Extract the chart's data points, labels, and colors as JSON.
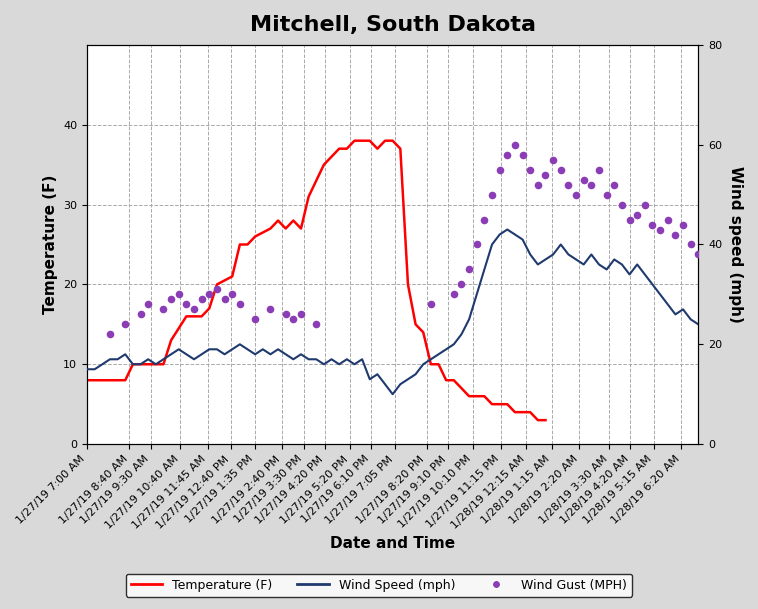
{
  "title": "Mitchell, South Dakota",
  "xlabel": "Date and Time",
  "ylabel_left": "Temperature (F)",
  "ylabel_right": "Wind speed (mph)",
  "background_color": "#d9d9d9",
  "plot_bg_color": "#ffffff",
  "title_fontsize": 16,
  "axis_label_fontsize": 11,
  "tick_fontsize": 8,
  "temp_color": "#ff0000",
  "wind_speed_color": "#1f3a6e",
  "wind_gust_color": "#8b3db5",
  "temp_ylim": [
    0,
    50
  ],
  "wind_ylim": [
    0,
    80
  ],
  "temp_yticks": [
    0,
    10,
    20,
    30,
    40
  ],
  "wind_yticks": [
    0,
    20,
    40,
    60,
    80
  ],
  "xtick_labels": [
    "1/27/19 7:00 AM",
    "1/27/19 8:40 AM",
    "1/27/19 9:30 AM",
    "1/27/19 10:40 AM",
    "1/27/19 11:45 AM",
    "1/27/19 12:40 PM",
    "1/27/19 1:35 PM",
    "1/27/19 2:40 PM",
    "1/27/19 3:30 PM",
    "1/27/19 4:20 PM",
    "1/27/19 5:20 PM",
    "1/27/19 6:10 PM",
    "1/27/19 7:05 PM",
    "1/27/19 8:20 PM",
    "1/27/19 9:10 PM",
    "1/27/19 10:10 PM",
    "1/27/19 11:15 PM",
    "1/28/19 12:15 AM",
    "1/28/19 1:15 AM",
    "1/28/19 2:20 AM",
    "1/28/19 3:30 AM",
    "1/28/19 4:20 AM",
    "1/28/19 5:15 AM",
    "1/28/19 6:20 AM"
  ],
  "temp_data": [
    [
      0,
      8
    ],
    [
      5,
      8
    ],
    [
      6,
      10
    ],
    [
      10,
      10
    ],
    [
      11,
      13
    ],
    [
      13,
      16
    ],
    [
      15,
      16
    ],
    [
      16,
      17
    ],
    [
      17,
      20
    ],
    [
      19,
      21
    ],
    [
      20,
      25
    ],
    [
      21,
      25
    ],
    [
      22,
      26
    ],
    [
      24,
      27
    ],
    [
      25,
      28
    ],
    [
      26,
      27
    ],
    [
      27,
      28
    ],
    [
      28,
      27
    ],
    [
      29,
      31
    ],
    [
      30,
      33
    ],
    [
      31,
      35
    ],
    [
      32,
      36
    ],
    [
      33,
      37
    ],
    [
      34,
      37
    ],
    [
      35,
      38
    ],
    [
      36,
      38
    ],
    [
      37,
      38
    ],
    [
      38,
      37
    ],
    [
      39,
      38
    ],
    [
      40,
      38
    ],
    [
      41,
      37
    ],
    [
      42,
      20
    ],
    [
      43,
      15
    ],
    [
      44,
      14
    ],
    [
      45,
      10
    ],
    [
      46,
      10
    ],
    [
      47,
      8
    ],
    [
      48,
      8
    ],
    [
      49,
      7
    ],
    [
      50,
      6
    ],
    [
      51,
      6
    ],
    [
      52,
      6
    ],
    [
      53,
      5
    ],
    [
      54,
      5
    ],
    [
      55,
      5
    ],
    [
      56,
      4
    ],
    [
      57,
      4
    ],
    [
      58,
      4
    ],
    [
      59,
      3
    ],
    [
      60,
      3
    ]
  ],
  "wind_speed_data": [
    [
      0,
      15
    ],
    [
      1,
      15
    ],
    [
      2,
      16
    ],
    [
      3,
      17
    ],
    [
      4,
      17
    ],
    [
      5,
      18
    ],
    [
      6,
      16
    ],
    [
      7,
      16
    ],
    [
      8,
      17
    ],
    [
      9,
      16
    ],
    [
      10,
      17
    ],
    [
      11,
      18
    ],
    [
      12,
      19
    ],
    [
      13,
      18
    ],
    [
      14,
      17
    ],
    [
      15,
      18
    ],
    [
      16,
      19
    ],
    [
      17,
      19
    ],
    [
      18,
      18
    ],
    [
      19,
      19
    ],
    [
      20,
      20
    ],
    [
      21,
      19
    ],
    [
      22,
      18
    ],
    [
      23,
      19
    ],
    [
      24,
      18
    ],
    [
      25,
      19
    ],
    [
      26,
      18
    ],
    [
      27,
      17
    ],
    [
      28,
      18
    ],
    [
      29,
      17
    ],
    [
      30,
      17
    ],
    [
      31,
      16
    ],
    [
      32,
      17
    ],
    [
      33,
      16
    ],
    [
      34,
      17
    ],
    [
      35,
      16
    ],
    [
      36,
      17
    ],
    [
      37,
      13
    ],
    [
      38,
      14
    ],
    [
      39,
      12
    ],
    [
      40,
      10
    ],
    [
      41,
      12
    ],
    [
      42,
      13
    ],
    [
      43,
      14
    ],
    [
      44,
      16
    ],
    [
      45,
      17
    ],
    [
      46,
      18
    ],
    [
      47,
      19
    ],
    [
      48,
      20
    ],
    [
      49,
      22
    ],
    [
      50,
      25
    ],
    [
      51,
      30
    ],
    [
      52,
      35
    ],
    [
      53,
      40
    ],
    [
      54,
      42
    ],
    [
      55,
      43
    ],
    [
      56,
      42
    ],
    [
      57,
      41
    ],
    [
      58,
      38
    ],
    [
      59,
      36
    ],
    [
      60,
      37
    ],
    [
      61,
      38
    ],
    [
      62,
      40
    ],
    [
      63,
      38
    ],
    [
      64,
      37
    ],
    [
      65,
      36
    ],
    [
      66,
      38
    ],
    [
      67,
      36
    ],
    [
      68,
      35
    ],
    [
      69,
      37
    ],
    [
      70,
      36
    ],
    [
      71,
      34
    ],
    [
      72,
      36
    ],
    [
      73,
      34
    ],
    [
      74,
      32
    ],
    [
      75,
      30
    ],
    [
      76,
      28
    ],
    [
      77,
      26
    ],
    [
      78,
      27
    ],
    [
      79,
      25
    ],
    [
      80,
      24
    ]
  ],
  "wind_gust_data": [
    [
      3,
      22
    ],
    [
      5,
      24
    ],
    [
      7,
      26
    ],
    [
      8,
      28
    ],
    [
      10,
      27
    ],
    [
      11,
      29
    ],
    [
      12,
      30
    ],
    [
      13,
      28
    ],
    [
      14,
      27
    ],
    [
      15,
      29
    ],
    [
      16,
      30
    ],
    [
      17,
      31
    ],
    [
      18,
      29
    ],
    [
      19,
      30
    ],
    [
      20,
      28
    ],
    [
      22,
      25
    ],
    [
      24,
      27
    ],
    [
      26,
      26
    ],
    [
      27,
      25
    ],
    [
      28,
      26
    ],
    [
      30,
      24
    ],
    [
      45,
      28
    ],
    [
      48,
      30
    ],
    [
      49,
      32
    ],
    [
      50,
      35
    ],
    [
      51,
      40
    ],
    [
      52,
      45
    ],
    [
      53,
      50
    ],
    [
      54,
      55
    ],
    [
      55,
      58
    ],
    [
      56,
      60
    ],
    [
      57,
      58
    ],
    [
      58,
      55
    ],
    [
      59,
      52
    ],
    [
      60,
      54
    ],
    [
      61,
      57
    ],
    [
      62,
      55
    ],
    [
      63,
      52
    ],
    [
      64,
      50
    ],
    [
      65,
      53
    ],
    [
      66,
      52
    ],
    [
      67,
      55
    ],
    [
      68,
      50
    ],
    [
      69,
      52
    ],
    [
      70,
      48
    ],
    [
      71,
      45
    ],
    [
      72,
      46
    ],
    [
      73,
      48
    ],
    [
      74,
      44
    ],
    [
      75,
      43
    ],
    [
      76,
      45
    ],
    [
      77,
      42
    ],
    [
      78,
      44
    ],
    [
      79,
      40
    ],
    [
      80,
      38
    ]
  ]
}
